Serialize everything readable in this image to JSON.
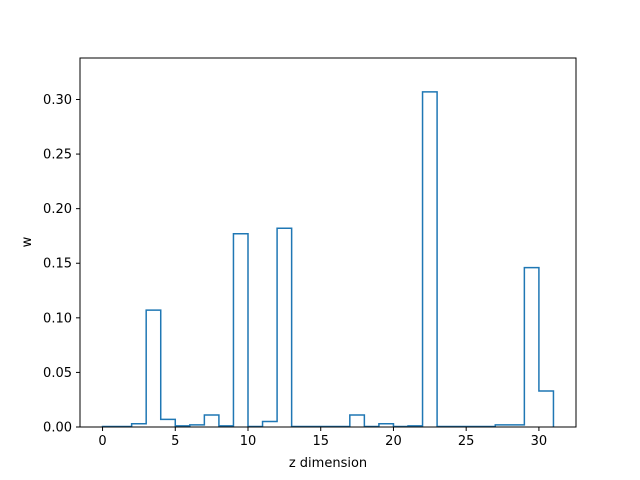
{
  "chart_data": {
    "type": "bar",
    "style": "step-histogram",
    "color": "#1f77b4",
    "xlabel": "z dimension",
    "ylabel": "w",
    "xlim": [
      -1.55,
      32.55
    ],
    "ylim": [
      0,
      0.338
    ],
    "xticks": [
      0,
      5,
      10,
      15,
      20,
      25,
      30
    ],
    "yticks": [
      0.0,
      0.05,
      0.1,
      0.15,
      0.2,
      0.25,
      0.3
    ],
    "xtick_labels": [
      "0",
      "5",
      "10",
      "15",
      "20",
      "25",
      "30"
    ],
    "ytick_labels": [
      "0.00",
      "0.05",
      "0.10",
      "0.15",
      "0.20",
      "0.25",
      "0.30"
    ],
    "bin_edges": [
      0,
      1,
      2,
      3,
      4,
      5,
      6,
      7,
      8,
      9,
      10,
      11,
      12,
      13,
      14,
      15,
      16,
      17,
      18,
      19,
      20,
      21,
      22,
      23,
      24,
      25,
      26,
      27,
      28,
      29,
      30,
      31
    ],
    "values": [
      0.0005,
      0.0005,
      0.003,
      0.107,
      0.007,
      0.001,
      0.002,
      0.011,
      0.001,
      0.177,
      0.0005,
      0.005,
      0.182,
      0.0005,
      0.0005,
      0.0005,
      0.0005,
      0.011,
      0.0005,
      0.003,
      0.0005,
      0.001,
      0.307,
      0.0005,
      0.0005,
      0.0005,
      0.0005,
      0.002,
      0.002,
      0.146,
      0.033
    ],
    "grid": false,
    "legend": "none"
  }
}
